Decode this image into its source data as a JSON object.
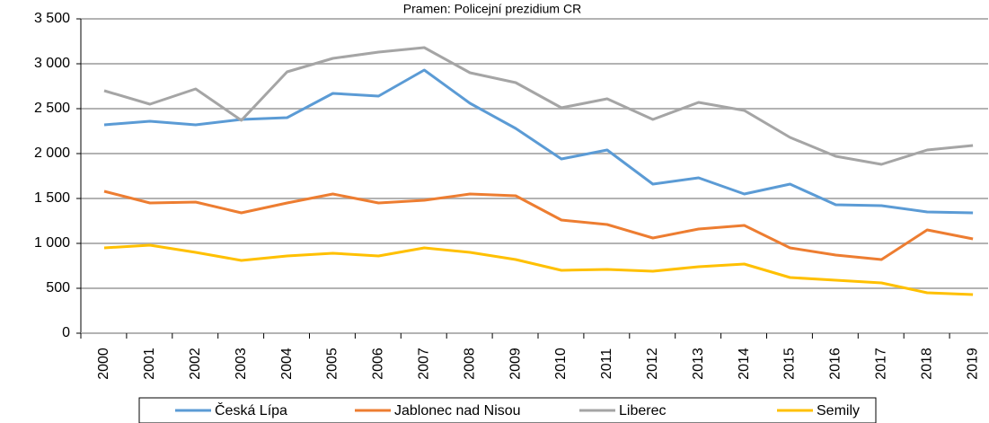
{
  "chart_data": {
    "type": "line",
    "title": "Pramen: Policejní prezidium CR",
    "categories": [
      "2000",
      "2001",
      "2002",
      "2003",
      "2004",
      "2005",
      "2006",
      "2007",
      "2008",
      "2009",
      "2010",
      "2011",
      "2012",
      "2013",
      "2014",
      "2015",
      "2016",
      "2017",
      "2018",
      "2019"
    ],
    "series": [
      {
        "name": "Česká Lípa",
        "color": "#5b9bd5",
        "values": [
          2320,
          2360,
          2320,
          2380,
          2400,
          2670,
          2640,
          2930,
          2560,
          2280,
          1940,
          2040,
          1660,
          1730,
          1550,
          1660,
          1430,
          1420,
          1350,
          1340
        ]
      },
      {
        "name": "Jablonec nad Nisou",
        "color": "#ed7d31",
        "values": [
          1580,
          1450,
          1460,
          1340,
          1450,
          1550,
          1450,
          1480,
          1550,
          1530,
          1260,
          1210,
          1060,
          1160,
          1200,
          950,
          870,
          820,
          1150,
          1050
        ]
      },
      {
        "name": "Liberec",
        "color": "#a5a5a5",
        "values": [
          2700,
          2550,
          2720,
          2370,
          2910,
          3060,
          3130,
          3180,
          2900,
          2790,
          2510,
          2610,
          2380,
          2570,
          2480,
          2180,
          1970,
          1880,
          2040,
          2090
        ]
      },
      {
        "name": "Semily",
        "color": "#ffc000",
        "values": [
          950,
          980,
          900,
          810,
          860,
          890,
          860,
          950,
          900,
          820,
          700,
          710,
          690,
          740,
          770,
          620,
          590,
          560,
          450,
          430
        ]
      }
    ],
    "ylim": [
      0,
      3500
    ],
    "yticks": [
      0,
      500,
      {
        "value": 1000,
        "label": "1 000"
      },
      {
        "value": 1500,
        "label": "1 500"
      },
      {
        "value": 2000,
        "label": "2 000"
      },
      {
        "value": 2500,
        "label": "2 500"
      },
      {
        "value": 3000,
        "label": "3 000"
      },
      {
        "value": 3500,
        "label": "3 500"
      }
    ],
    "grid": true,
    "legend": "bottom"
  }
}
